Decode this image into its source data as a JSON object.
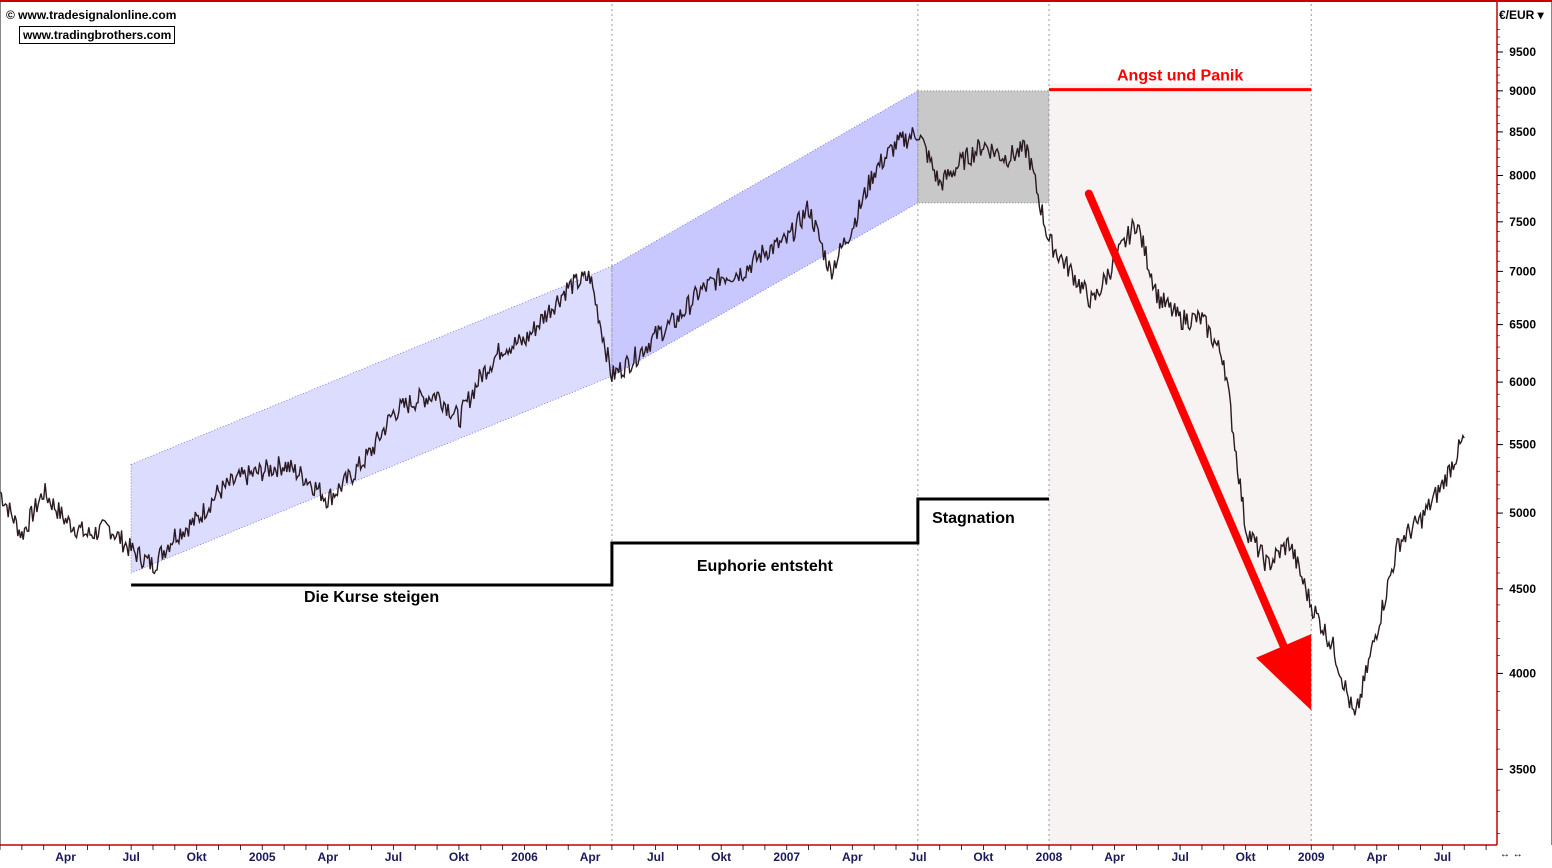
{
  "watermark": {
    "copyright_line": "© www.tradesignalonline.com",
    "site_box": "www.tradingbrothers.com"
  },
  "currency_menu": "€/EUR",
  "colors": {
    "price_line": "#2a1a22",
    "rise_channel": "#dcdcff",
    "euphoria_channel": "#c8c8ff",
    "stagnation_box": "#c8c8c8",
    "panic_zone": "#f6f3f2",
    "panic_arrow": "#ff0000",
    "phase_line": "#000000",
    "axis_line": "#c80000"
  },
  "chart_data": {
    "type": "line",
    "title": "",
    "xlabel": "",
    "ylabel": "",
    "y_scale": "log",
    "ylim": [
      3150,
      10100
    ],
    "xlim": [
      "2004-02",
      "2009-09"
    ],
    "grid": false,
    "y_ticks": [
      3500,
      4000,
      4500,
      5000,
      5500,
      6000,
      6500,
      7000,
      7500,
      8000,
      8500,
      9000,
      9500
    ],
    "x_ticks": [
      {
        "date": "2004-04",
        "label": "Apr"
      },
      {
        "date": "2004-07",
        "label": "Jul"
      },
      {
        "date": "2004-10",
        "label": "Okt"
      },
      {
        "date": "2005-01",
        "label": "2005"
      },
      {
        "date": "2005-04",
        "label": "Apr"
      },
      {
        "date": "2005-07",
        "label": "Jul"
      },
      {
        "date": "2005-10",
        "label": "Okt"
      },
      {
        "date": "2006-01",
        "label": "2006"
      },
      {
        "date": "2006-04",
        "label": "Apr"
      },
      {
        "date": "2006-07",
        "label": "Jul"
      },
      {
        "date": "2006-10",
        "label": "Okt"
      },
      {
        "date": "2007-01",
        "label": "2007"
      },
      {
        "date": "2007-04",
        "label": "Apr"
      },
      {
        "date": "2007-07",
        "label": "Jul"
      },
      {
        "date": "2007-10",
        "label": "Okt"
      },
      {
        "date": "2008-01",
        "label": "2008"
      },
      {
        "date": "2008-04",
        "label": "Apr"
      },
      {
        "date": "2008-07",
        "label": "Jul"
      },
      {
        "date": "2008-10",
        "label": "Okt"
      },
      {
        "date": "2009-01",
        "label": "2009"
      },
      {
        "date": "2009-04",
        "label": "Apr"
      },
      {
        "date": "2009-07",
        "label": "Jul"
      }
    ],
    "series": [
      {
        "x": [
          "2004-01",
          "2004-02",
          "2004-03",
          "2004-04",
          "2004-05",
          "2004-06",
          "2004-07",
          "2004-08",
          "2004-09",
          "2004-10",
          "2004-11",
          "2004-12",
          "2005-01",
          "2005-02",
          "2005-03",
          "2005-04",
          "2005-05",
          "2005-06",
          "2005-07",
          "2005-08",
          "2005-09",
          "2005-10",
          "2005-11",
          "2005-12",
          "2006-01",
          "2006-02",
          "2006-03",
          "2006-04",
          "2006-05",
          "2006-06",
          "2006-07",
          "2006-08",
          "2006-09",
          "2006-10",
          "2006-11",
          "2006-12",
          "2007-01",
          "2007-02",
          "2007-03",
          "2007-04",
          "2007-05",
          "2007-06",
          "2007-07",
          "2007-08",
          "2007-09",
          "2007-10",
          "2007-11",
          "2007-12",
          "2008-01",
          "2008-02",
          "2008-03",
          "2008-04",
          "2008-05",
          "2008-06",
          "2008-07",
          "2008-08",
          "2008-09",
          "2008-10",
          "2008-11",
          "2008-12",
          "2009-01",
          "2009-02",
          "2009-03",
          "2009-04",
          "2009-05",
          "2009-06",
          "2009-07",
          "2009-08"
        ],
        "values": [
          5150,
          4850,
          5150,
          4950,
          4850,
          4900,
          4750,
          4650,
          4850,
          4950,
          5150,
          5250,
          5300,
          5350,
          5250,
          5100,
          5250,
          5450,
          5750,
          5850,
          5900,
          5700,
          6050,
          6300,
          6350,
          6600,
          6850,
          6950,
          6050,
          6200,
          6400,
          6550,
          6800,
          6950,
          7000,
          7200,
          7300,
          7650,
          7000,
          7450,
          8050,
          8350,
          8500,
          7900,
          8150,
          8350,
          8200,
          8300,
          7300,
          7000,
          6700,
          7100,
          7500,
          6750,
          6550,
          6550,
          6200,
          4900,
          4650,
          4800,
          4400,
          4150,
          3750,
          4250,
          4800,
          4950,
          5200,
          5550
        ]
      }
    ],
    "annotations": [
      {
        "label": "Die Kurse steigen",
        "phase": "Anstieg",
        "from": "2004-07",
        "to": "2006-05",
        "channel_start": [
          4600,
          5350
        ],
        "channel_end": [
          6050,
          7050
        ]
      },
      {
        "label": "Euphorie entsteht",
        "phase": "Euphorie",
        "from": "2006-05",
        "to": "2007-07",
        "channel_start": [
          6050,
          7050
        ],
        "channel_end": [
          7700,
          9000
        ]
      },
      {
        "label": "Stagnation",
        "phase": "Stagnation",
        "from": "2007-07",
        "to": "2008-01",
        "range": [
          7700,
          9000
        ]
      },
      {
        "label": "Angst und Panik",
        "phase": "Panik",
        "from": "2008-01",
        "to": "2009-01",
        "arrow_from": [
          "2008-02",
          7800
        ],
        "arrow_to": [
          "2009-01",
          3800
        ]
      }
    ]
  }
}
